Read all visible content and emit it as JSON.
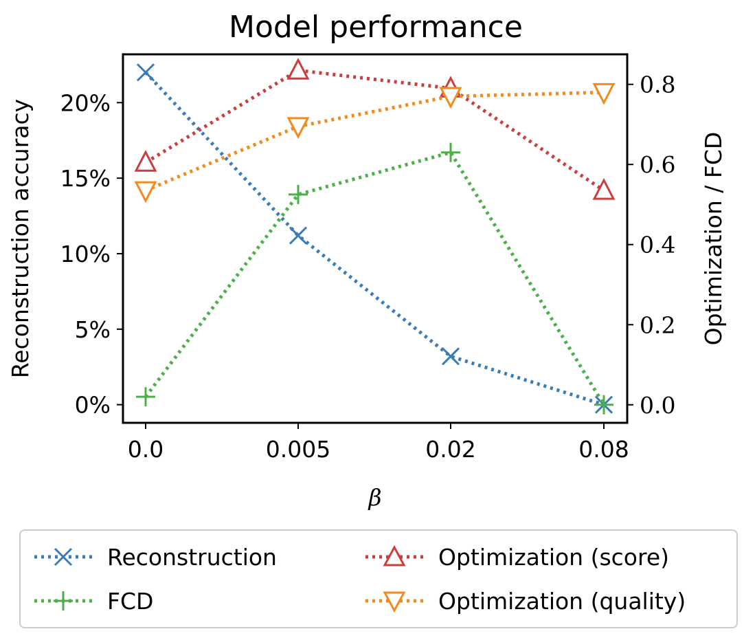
{
  "colors": {
    "reconstruction": "#3a7bb8",
    "fcd": "#4daf4a",
    "optimization_score": "#cc3d3d",
    "optimization_quality": "#f28a1e"
  },
  "chart_data": {
    "type": "line",
    "title": "Model performance",
    "xlabel": "β",
    "categories": [
      "0.0",
      "0.005",
      "0.02",
      "0.08"
    ],
    "left_axis": {
      "label": "Reconstruction accuracy",
      "ylim": [
        -1.2,
        23.2
      ],
      "ticks": [
        0,
        5,
        10,
        15,
        20
      ],
      "tick_labels": [
        "0%",
        "5%",
        "10%",
        "15%",
        "20%"
      ]
    },
    "right_axis": {
      "label": "Optimization / FCD",
      "ylim": [
        -0.045,
        0.875
      ],
      "ticks": [
        0.0,
        0.2,
        0.4,
        0.6,
        0.8
      ],
      "tick_labels": [
        "0.0",
        "0.2",
        "0.4",
        "0.6",
        "0.8"
      ]
    },
    "series": [
      {
        "name": "Reconstruction",
        "axis": "left",
        "marker": "x",
        "color": "#3a7bb8",
        "values": [
          22.0,
          11.2,
          3.2,
          0.0
        ]
      },
      {
        "name": "FCD",
        "axis": "right",
        "marker": "plus",
        "color": "#4daf4a",
        "values": [
          0.02,
          0.525,
          0.63,
          0.0
        ]
      },
      {
        "name": "Optimization (score)",
        "axis": "right",
        "marker": "triangle-up",
        "color": "#cc3d3d",
        "values": [
          0.605,
          0.835,
          0.79,
          0.535
        ]
      },
      {
        "name": "Optimization (quality)",
        "axis": "right",
        "marker": "triangle-down",
        "color": "#f28a1e",
        "values": [
          0.535,
          0.695,
          0.77,
          0.78
        ]
      }
    ],
    "grid": false,
    "legend_position": "bottom"
  }
}
